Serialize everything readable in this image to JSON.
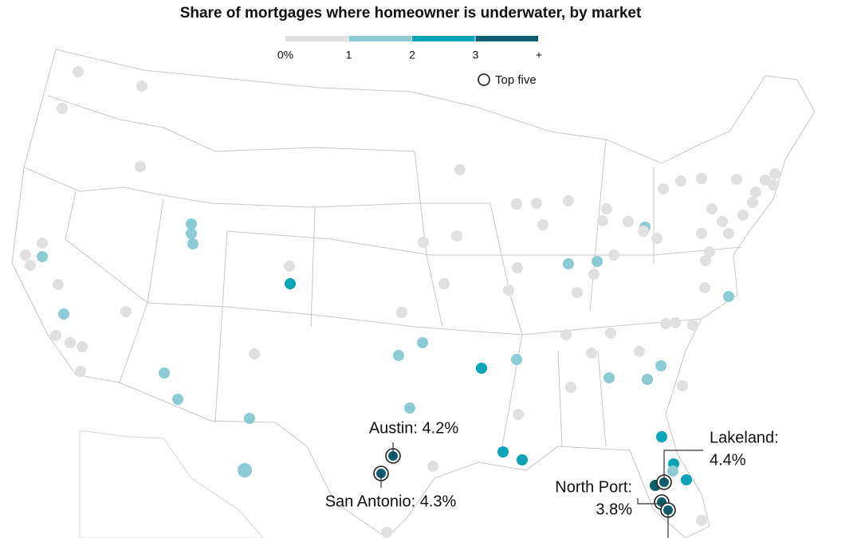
{
  "title": "Share of mortgages where homeowner is underwater, by market",
  "legend": {
    "colors": [
      "#e0e0e0",
      "#8ccbd6",
      "#0aa3b8",
      "#0b5e6b"
    ],
    "labels": [
      "0%",
      "1",
      "2",
      "3",
      "+"
    ],
    "top_five": "Top five"
  },
  "annotations": [
    "Austin: 4.2%",
    "San Antonio: 4.3%",
    "Lakeland:",
    "4.4%",
    "North Port:",
    "3.8%"
  ],
  "markets": [
    {
      "bin": 0
    },
    {
      "bin": 0
    },
    {
      "bin": 0
    },
    {
      "bin": 0
    },
    {
      "bin": 0
    },
    {
      "bin": 0
    },
    {
      "bin": 0
    },
    {
      "bin": 1
    },
    {
      "bin": 0
    },
    {
      "bin": 1
    },
    {
      "bin": 0
    },
    {
      "bin": 0
    },
    {
      "bin": 0
    },
    {
      "bin": 0
    },
    {
      "bin": 0
    },
    {
      "bin": 1
    },
    {
      "bin": 1
    },
    {
      "bin": 1
    },
    {
      "bin": 1
    },
    {
      "bin": 1
    },
    {
      "bin": 0
    },
    {
      "bin": 0
    },
    {
      "bin": 2
    },
    {
      "bin": 1
    },
    {
      "bin": 1
    },
    {
      "bin": 1
    },
    {
      "bin": 1
    },
    {
      "bin": 1
    },
    {
      "bin": 3,
      "top": true
    },
    {
      "bin": 3,
      "top": true
    },
    {
      "bin": 0
    },
    {
      "bin": 0
    },
    {
      "bin": 2
    },
    {
      "bin": 1
    },
    {
      "bin": 0
    },
    {
      "bin": 0
    },
    {
      "bin": 0
    },
    {
      "bin": 0
    },
    {
      "bin": 0
    },
    {
      "bin": 0
    },
    {
      "bin": 0
    },
    {
      "bin": 0
    },
    {
      "bin": 0
    },
    {
      "bin": 0
    },
    {
      "bin": 0
    },
    {
      "bin": 1
    },
    {
      "bin": 1
    },
    {
      "bin": 0
    },
    {
      "bin": 0
    },
    {
      "bin": 0
    },
    {
      "bin": 0
    },
    {
      "bin": 0
    },
    {
      "bin": 0
    },
    {
      "bin": 1
    },
    {
      "bin": 0
    },
    {
      "bin": 0
    },
    {
      "bin": 0
    },
    {
      "bin": 0
    },
    {
      "bin": 0
    },
    {
      "bin": 0
    },
    {
      "bin": 0
    },
    {
      "bin": 0
    },
    {
      "bin": 0
    },
    {
      "bin": 0
    },
    {
      "bin": 1
    },
    {
      "bin": 1
    },
    {
      "bin": 1
    },
    {
      "bin": 0
    },
    {
      "bin": 0
    },
    {
      "bin": 0
    },
    {
      "bin": 2
    },
    {
      "bin": 2
    },
    {
      "bin": 2
    },
    {
      "bin": 2
    },
    {
      "bin": 1
    },
    {
      "bin": 2
    },
    {
      "bin": 3
    },
    {
      "bin": 3,
      "top": true
    },
    {
      "bin": 3,
      "top": true
    },
    {
      "bin": 3,
      "top": true
    },
    {
      "bin": 0
    },
    {
      "bin": 0
    },
    {
      "bin": 0
    },
    {
      "bin": 0
    },
    {
      "bin": 0
    },
    {
      "bin": 0
    },
    {
      "bin": 0
    },
    {
      "bin": 0
    },
    {
      "bin": 0
    },
    {
      "bin": 0
    },
    {
      "bin": 0
    },
    {
      "bin": 0
    },
    {
      "bin": 0
    },
    {
      "bin": 0
    },
    {
      "bin": 0
    },
    {
      "bin": 0
    },
    {
      "bin": 0
    },
    {
      "bin": 1
    }
  ]
}
